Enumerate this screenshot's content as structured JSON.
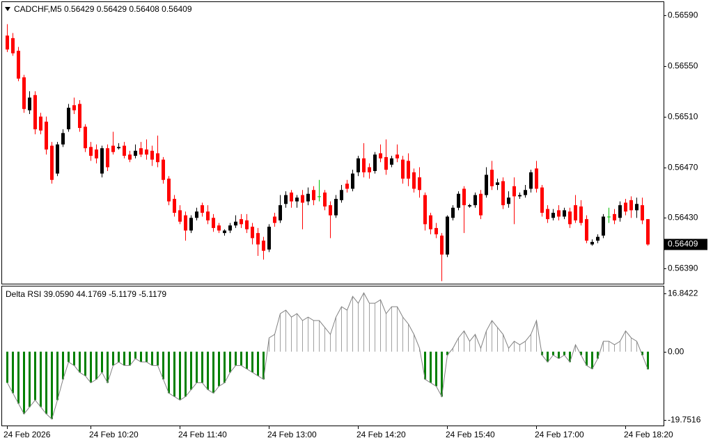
{
  "chart_data": [
    {
      "type": "candlestick",
      "title": "CADCHF,M5  0.56429 0.56429 0.56408 0.56409",
      "categories": [
        "24 Feb 2026",
        null,
        null,
        null,
        null,
        null,
        null,
        null,
        null,
        null,
        null,
        null,
        null,
        null,
        null,
        "24 Feb 10:20",
        null,
        null,
        null,
        null,
        null,
        null,
        null,
        null,
        null,
        null,
        null,
        null,
        null,
        null,
        null,
        "24 Feb 11:40",
        null,
        null,
        null,
        null,
        null,
        null,
        null,
        null,
        null,
        null,
        null,
        null,
        null,
        null,
        null,
        "24 Feb 13:00",
        null,
        null,
        null,
        null,
        null,
        null,
        null,
        null,
        null,
        null,
        null,
        null,
        null,
        null,
        null,
        "24 Feb 14:20",
        null,
        null,
        null,
        null,
        null,
        null,
        null,
        null,
        null,
        null,
        null,
        null,
        null,
        null,
        null,
        "24 Feb 15:40",
        null,
        null,
        null,
        null,
        null,
        null,
        null,
        null,
        null,
        null,
        null,
        null,
        null,
        null,
        null,
        "24 Feb 17:00",
        null,
        null,
        null,
        null,
        null,
        null,
        null,
        null,
        null,
        null,
        null,
        null,
        null,
        null,
        null,
        "24 Feb 18:20",
        null,
        null,
        null,
        null
      ],
      "open": [
        0.56574,
        0.56572,
        0.56562,
        0.56541,
        0.56515,
        0.56527,
        0.5651,
        0.56506,
        0.56487,
        0.56465,
        0.56488,
        0.565,
        0.56519,
        0.5652,
        0.56502,
        0.56486,
        0.56484,
        0.56465,
        0.56485,
        0.56487,
        0.56485,
        0.56487,
        0.5648,
        0.56479,
        0.56485,
        0.56484,
        0.56483,
        0.56481,
        0.56476,
        0.56461,
        0.56445,
        0.56436,
        0.56432,
        0.5642,
        0.5643,
        0.5644,
        0.56435,
        0.5643,
        0.56424,
        0.56418,
        0.5642,
        0.56424,
        0.56429,
        0.56428,
        0.56423,
        0.56418,
        0.56412,
        0.56405,
        0.56431,
        0.56428,
        0.56441,
        0.5645,
        0.56443,
        0.56448,
        0.56443,
        0.56452,
        0.56447,
        0.5645,
        0.5644,
        0.56432,
        0.56444,
        0.56457,
        0.56453,
        0.56466,
        0.56477,
        0.5647,
        0.56467,
        0.56481,
        0.56478,
        0.56472,
        0.5648,
        0.56476,
        0.56475,
        0.56466,
        0.56462,
        0.56448,
        0.56432,
        0.56422,
        0.56416,
        0.56401,
        0.5643,
        0.56438,
        0.56453,
        0.56439,
        0.5644,
        0.56449,
        0.56448,
        0.56468,
        0.56456,
        0.56459,
        0.56441,
        0.56455,
        0.56447,
        0.56448,
        0.56453,
        0.56469,
        0.56454,
        0.56437,
        0.5643,
        0.56436,
        0.56431,
        0.56435,
        0.5644,
        0.56439,
        0.56429,
        0.56409,
        0.56412,
        0.56416,
        0.56431,
        0.56433,
        0.5643,
        0.56442,
        0.56444,
        0.56436,
        0.5644,
        0.56429
      ],
      "high": [
        0.56583,
        0.56576,
        0.56565,
        0.56543,
        0.5653,
        0.5653,
        0.56513,
        0.5651,
        0.5649,
        0.5649,
        0.565,
        0.5652,
        0.56525,
        0.56523,
        0.56504,
        0.5649,
        0.56488,
        0.56487,
        0.56488,
        0.56498,
        0.56489,
        0.5649,
        0.56483,
        0.56488,
        0.5649,
        0.56492,
        0.56487,
        0.56495,
        0.56478,
        0.56463,
        0.56448,
        0.5644,
        0.56435,
        0.56432,
        0.56438,
        0.56442,
        0.5644,
        0.56433,
        0.56426,
        0.56421,
        0.56426,
        0.56432,
        0.56433,
        0.56433,
        0.56426,
        0.56422,
        0.56415,
        0.56425,
        0.56434,
        0.56448,
        0.56451,
        0.56452,
        0.56448,
        0.56452,
        0.56454,
        0.56455,
        0.5646,
        0.56452,
        0.56443,
        0.56448,
        0.56456,
        0.5646,
        0.56468,
        0.56479,
        0.56489,
        0.56473,
        0.56482,
        0.56488,
        0.56492,
        0.56479,
        0.56488,
        0.56479,
        0.56481,
        0.56469,
        0.5647,
        0.5645,
        0.56434,
        0.56426,
        0.56418,
        0.56432,
        0.5644,
        0.56451,
        0.56455,
        0.56441,
        0.5645,
        0.56452,
        0.5647,
        0.56475,
        0.56461,
        0.56462,
        0.56451,
        0.56462,
        0.5645,
        0.56456,
        0.56468,
        0.56475,
        0.56456,
        0.5644,
        0.56437,
        0.5644,
        0.56438,
        0.56438,
        0.56448,
        0.56444,
        0.56432,
        0.56413,
        0.56417,
        0.56433,
        0.56438,
        0.56437,
        0.56443,
        0.56445,
        0.56447,
        0.56446,
        0.56446,
        0.56429
      ],
      "low": [
        0.56561,
        0.56558,
        0.56538,
        0.56513,
        0.56512,
        0.56496,
        0.56496,
        0.5648,
        0.56457,
        0.56463,
        0.56486,
        0.56498,
        0.56512,
        0.56498,
        0.56482,
        0.56475,
        0.56473,
        0.56462,
        0.56467,
        0.5648,
        0.56484,
        0.56477,
        0.56474,
        0.56477,
        0.56478,
        0.56476,
        0.56471,
        0.5647,
        0.56457,
        0.5644,
        0.56431,
        0.56425,
        0.56412,
        0.56418,
        0.56428,
        0.56431,
        0.56425,
        0.56419,
        0.56418,
        0.56416,
        0.56418,
        0.56422,
        0.56422,
        0.56418,
        0.56409,
        0.564,
        0.56397,
        0.56403,
        0.56423,
        0.56426,
        0.56438,
        0.56438,
        0.56438,
        0.56421,
        0.5644,
        0.5644,
        0.56443,
        0.56436,
        0.56414,
        0.5643,
        0.56442,
        0.5645,
        0.56451,
        0.56463,
        0.56462,
        0.56461,
        0.56465,
        0.56474,
        0.56464,
        0.5647,
        0.56474,
        0.56457,
        0.56455,
        0.5645,
        0.56446,
        0.5642,
        0.56417,
        0.56414,
        0.5638,
        0.56399,
        0.56428,
        0.56436,
        0.56418,
        0.56438,
        0.56438,
        0.56429,
        0.56446,
        0.56452,
        0.56452,
        0.56437,
        0.56438,
        0.56425,
        0.56445,
        0.56446,
        0.5645,
        0.5645,
        0.56431,
        0.56426,
        0.56428,
        0.56428,
        0.56429,
        0.56422,
        0.56426,
        0.56424,
        0.5641,
        0.56408,
        0.5641,
        0.56414,
        0.56426,
        0.56425,
        0.56427,
        0.56432,
        0.5643,
        0.5643,
        0.56425,
        0.56408
      ],
      "close": [
        0.56563,
        0.5656,
        0.5654,
        0.56516,
        0.56525,
        0.565,
        0.56499,
        0.56484,
        0.5646,
        0.56488,
        0.56497,
        0.56517,
        0.56515,
        0.56501,
        0.56485,
        0.56479,
        0.56477,
        0.56485,
        0.5647,
        0.56482,
        0.56486,
        0.56479,
        0.56476,
        0.56483,
        0.5648,
        0.5648,
        0.56476,
        0.56474,
        0.5646,
        0.56443,
        0.56434,
        0.56427,
        0.5642,
        0.5643,
        0.56435,
        0.56434,
        0.56428,
        0.56422,
        0.5642,
        0.5642,
        0.56424,
        0.56427,
        0.56425,
        0.56421,
        0.56414,
        0.56409,
        0.56404,
        0.56423,
        0.56426,
        0.5644,
        0.56448,
        0.56443,
        0.56446,
        0.56442,
        0.56449,
        0.56444,
        0.56447,
        0.56439,
        0.56432,
        0.56445,
        0.56452,
        0.56453,
        0.56465,
        0.56477,
        0.56466,
        0.56466,
        0.5648,
        0.56477,
        0.56468,
        0.56477,
        0.56477,
        0.56461,
        0.56461,
        0.56453,
        0.56452,
        0.56425,
        0.56421,
        0.56417,
        0.56401,
        0.56431,
        0.56438,
        0.56449,
        0.5644,
        0.5644,
        0.56448,
        0.56432,
        0.56464,
        0.56455,
        0.56458,
        0.5644,
        0.56446,
        0.56447,
        0.56448,
        0.56452,
        0.56466,
        0.56453,
        0.56434,
        0.56429,
        0.56434,
        0.56431,
        0.56436,
        0.56425,
        0.56428,
        0.56426,
        0.56412,
        0.56411,
        0.56415,
        0.56431,
        0.56431,
        0.56428,
        0.5644,
        0.56435,
        0.56436,
        0.56441,
        0.56428,
        0.56409
      ],
      "up_color": "#000000",
      "down_color": "#ff0000",
      "doji_color": "#00c000",
      "ylim": [
        0.56378,
        0.56601
      ],
      "yticks": [
        {
          "value": 0.5659,
          "label": "0.56590"
        },
        {
          "value": 0.5655,
          "label": "0.56550"
        },
        {
          "value": 0.5651,
          "label": "0.56510"
        },
        {
          "value": 0.5647,
          "label": "0.56470"
        },
        {
          "value": 0.5643,
          "label": "0.56430"
        },
        {
          "value": 0.5639,
          "label": "0.56390"
        }
      ],
      "last_price": 0.56409
    },
    {
      "type": "histogram",
      "title": "Delta RSI 39.0590 44.1769 -5.1179 -5.1179",
      "values": [
        -9,
        -12,
        -15,
        -18,
        -16,
        -14,
        -16,
        -18,
        -19.5,
        -14,
        -8,
        -3,
        -4,
        -6,
        -7,
        -9,
        -8,
        -6,
        -9,
        -4,
        -3,
        -4,
        -4,
        -2,
        -3,
        -3,
        -4,
        -4,
        -8,
        -12,
        -13,
        -14,
        -13,
        -11,
        -9,
        -9,
        -11,
        -12,
        -10,
        -9,
        -6,
        -4,
        -4,
        -5,
        -6,
        -7,
        -8,
        4,
        5,
        11,
        12,
        10,
        11,
        9,
        10,
        9,
        9,
        7,
        5,
        10,
        13,
        12,
        16,
        14,
        17,
        14,
        14,
        15,
        11,
        13,
        13,
        10,
        8,
        5,
        1,
        -8,
        -9,
        -10,
        -13,
        -1,
        1,
        4,
        6,
        3,
        5,
        1,
        6,
        9,
        7,
        5,
        1,
        3,
        2,
        3,
        5,
        9,
        -1,
        -3,
        -1,
        -2,
        -1,
        -3,
        2,
        -1,
        -4,
        -5,
        -2,
        3,
        3,
        2,
        3,
        6,
        4,
        3,
        -1,
        -5.1179
      ],
      "neg_color": "#008000",
      "pos_color": "#a0a0a0",
      "line_color": "#808080",
      "ylim": [
        -19.7516,
        16.8422
      ],
      "yticks": [
        16.8422,
        {
          "value": 0,
          "label": "0.00"
        },
        -19.7516
      ]
    }
  ]
}
